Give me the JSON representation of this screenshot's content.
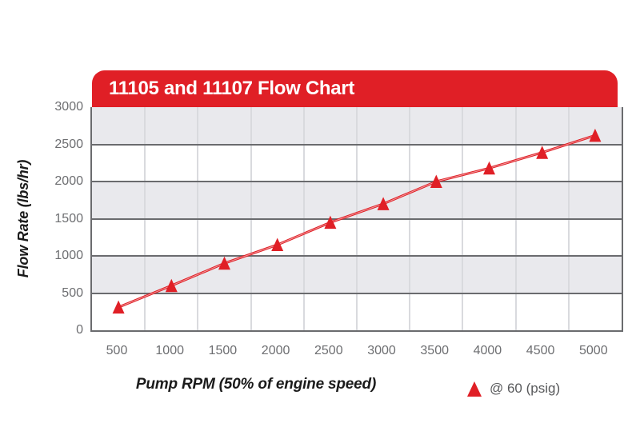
{
  "header": {
    "title": "11105 and 11107 Flow Chart"
  },
  "chart_data": {
    "type": "line",
    "title": "11105 and 11107 Flow Chart",
    "xlabel": "Pump RPM (50% of engine speed)",
    "ylabel": "Flow Rate (lbs/hr)",
    "x": [
      500,
      1000,
      1500,
      2000,
      2500,
      3000,
      3500,
      4000,
      4500,
      5000
    ],
    "x_tick_labels": [
      "500",
      "1000",
      "1500",
      "2000",
      "2500",
      "3000",
      "3500",
      "4000",
      "4500",
      "5000"
    ],
    "y_ticks": [
      0,
      500,
      1000,
      1500,
      2000,
      2500,
      3000
    ],
    "ylim": [
      0,
      3000
    ],
    "series": [
      {
        "name": "@ 60 (psig)",
        "marker": "triangle",
        "values": [
          310,
          600,
          900,
          1150,
          1450,
          1700,
          2000,
          2180,
          2390,
          2620
        ]
      }
    ],
    "grid": {
      "horizontal": true,
      "vertical": true,
      "row_banding": "alternate-gray-white"
    },
    "legend_position": "bottom-right"
  },
  "legend": {
    "label": "@ 60 (psig)"
  },
  "colors": {
    "accent_red": "#e01f26",
    "band_gray": "#e9e9ed",
    "h_grid": "#6a6b6e",
    "v_grid": "#d9dade",
    "tick_text": "#6d6e71",
    "axis_label_text": "#1b1b1b",
    "legend_text": "#58595b",
    "title_text": "#ffffff"
  }
}
